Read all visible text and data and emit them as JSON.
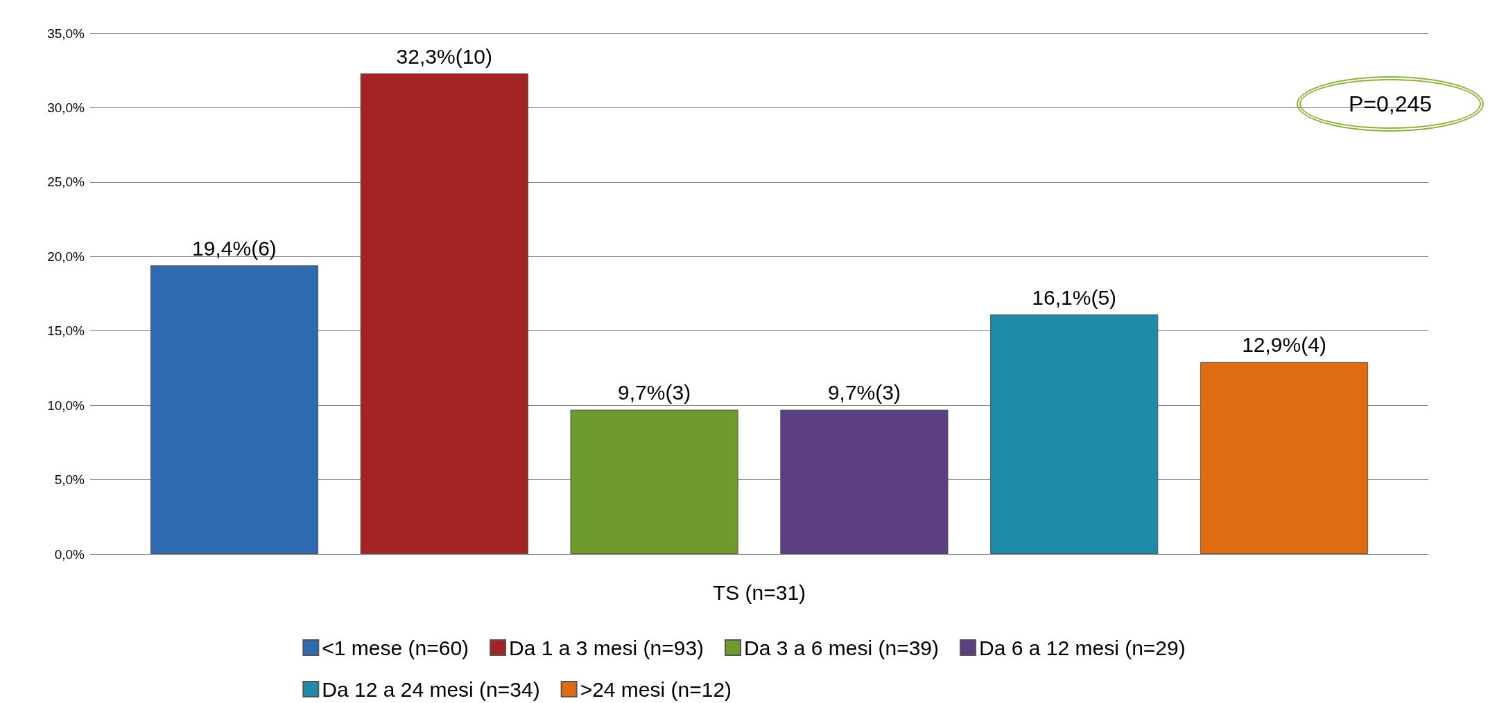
{
  "chart_data": {
    "type": "bar",
    "categories": [
      "TS (n=31)"
    ],
    "series": [
      {
        "name": "<1 mese (n=60)",
        "color": "#2f69b0",
        "values": [
          19.4
        ],
        "value_labels": [
          "19,4%(6)"
        ]
      },
      {
        "name": "Da 1 a 3 mesi (n=93)",
        "color": "#a32324",
        "values": [
          32.3
        ],
        "value_labels": [
          "32,3%(10)"
        ]
      },
      {
        "name": "Da 3 a 6 mesi (n=39)",
        "color": "#6f9a2e",
        "values": [
          9.7
        ],
        "value_labels": [
          "9,7%(3)"
        ]
      },
      {
        "name": "Da 6 a 12 mesi (n=29)",
        "color": "#5b3f80",
        "values": [
          9.7
        ],
        "value_labels": [
          "9,7%(3)"
        ]
      },
      {
        "name": "Da 12 a 24 mesi (n=34)",
        "color": "#1e8ca8",
        "values": [
          16.1
        ],
        "value_labels": [
          "16,1%(5)"
        ]
      },
      {
        "name": ">24 mesi (n=12)",
        "color": "#e06c12",
        "values": [
          12.9
        ],
        "value_labels": [
          "12,9%(4)"
        ]
      }
    ],
    "ylim": [
      0,
      35
    ],
    "yticks": [
      {
        "value": 0,
        "label": "0,0%"
      },
      {
        "value": 5,
        "label": "5,0%"
      },
      {
        "value": 10,
        "label": "10,0%"
      },
      {
        "value": 15,
        "label": "15,0%"
      },
      {
        "value": 20,
        "label": "20,0%"
      },
      {
        "value": 25,
        "label": "25,0%"
      },
      {
        "value": 30,
        "label": "30,0%"
      },
      {
        "value": 35,
        "label": "35,0%"
      }
    ],
    "grid": "y",
    "legend": "bottom",
    "annotations": [
      "P=0,245"
    ]
  }
}
